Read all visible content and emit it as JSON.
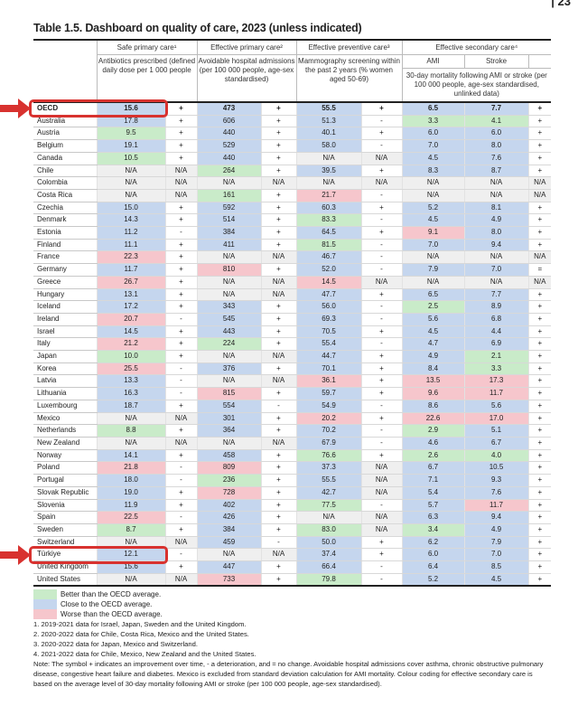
{
  "page_number": "| 23",
  "title": "Table 1.5. Dashboard on quality of care, 2023 (unless indicated)",
  "colors": {
    "b": "#c5d6ee",
    "g": "#c9ebc9",
    "r": "#f6c6cc",
    "n": "#efefef",
    "highlight": "#d8322f"
  },
  "header": {
    "groups": [
      "Safe primary care¹",
      "Effective primary care²",
      "Effective preventive care³",
      "Effective secondary care⁴"
    ],
    "safe_desc": "Antibiotics prescribed (defined daily dose per 1 000 people",
    "eff_desc": "Avoidable hospital admissions (per 100 000 people, age-sex standardised)",
    "prev_desc": "Mammography screening within the past 2 years (% women aged 50-69)",
    "ami": "AMI",
    "stroke": "Stroke",
    "sec_desc": "30-day mortality following AMI or stroke (per 100 000 people, age-sex standardised, unlinked data)"
  },
  "rows": [
    [
      "OECD",
      "15.6",
      "b",
      "+",
      "473",
      "b",
      "+",
      "55.5",
      "b",
      "+",
      "6.5",
      "b",
      "7.7",
      "b",
      "+"
    ],
    [
      "Australia",
      "17.8",
      "b",
      "+",
      "606",
      "b",
      "+",
      "51.3",
      "b",
      "-",
      "3.3",
      "g",
      "4.1",
      "g",
      "+"
    ],
    [
      "Austria",
      "9.5",
      "g",
      "+",
      "440",
      "b",
      "+",
      "40.1",
      "b",
      "+",
      "6.0",
      "b",
      "6.0",
      "b",
      "+"
    ],
    [
      "Belgium",
      "19.1",
      "b",
      "+",
      "529",
      "b",
      "+",
      "58.0",
      "b",
      "-",
      "7.0",
      "b",
      "8.0",
      "b",
      "+"
    ],
    [
      "Canada",
      "10.5",
      "g",
      "+",
      "440",
      "b",
      "+",
      "N/A",
      "n",
      "N/A",
      "4.5",
      "b",
      "7.6",
      "b",
      "+"
    ],
    [
      "Chile",
      "N/A",
      "n",
      "N/A",
      "264",
      "g",
      "+",
      "39.5",
      "b",
      "+",
      "8.3",
      "b",
      "8.7",
      "b",
      "+"
    ],
    [
      "Colombia",
      "N/A",
      "n",
      "N/A",
      "N/A",
      "n",
      "N/A",
      "N/A",
      "n",
      "N/A",
      "N/A",
      "n",
      "N/A",
      "n",
      "N/A"
    ],
    [
      "Costa Rica",
      "N/A",
      "n",
      "N/A",
      "161",
      "g",
      "+",
      "21.7",
      "r",
      "-",
      "N/A",
      "n",
      "N/A",
      "n",
      "N/A"
    ],
    [
      "Czechia",
      "15.0",
      "b",
      "+",
      "592",
      "b",
      "+",
      "60.3",
      "b",
      "+",
      "5.2",
      "b",
      "8.1",
      "b",
      "+"
    ],
    [
      "Denmark",
      "14.3",
      "b",
      "+",
      "514",
      "b",
      "+",
      "83.3",
      "g",
      "-",
      "4.5",
      "b",
      "4.9",
      "b",
      "+"
    ],
    [
      "Estonia",
      "11.2",
      "b",
      "-",
      "384",
      "b",
      "+",
      "64.5",
      "b",
      "+",
      "9.1",
      "r",
      "8.0",
      "b",
      "+"
    ],
    [
      "Finland",
      "11.1",
      "b",
      "+",
      "411",
      "b",
      "+",
      "81.5",
      "g",
      "-",
      "7.0",
      "b",
      "9.4",
      "b",
      "+"
    ],
    [
      "France",
      "22.3",
      "r",
      "+",
      "N/A",
      "n",
      "N/A",
      "46.7",
      "b",
      "-",
      "N/A",
      "n",
      "N/A",
      "n",
      "N/A"
    ],
    [
      "Germany",
      "11.7",
      "b",
      "+",
      "810",
      "r",
      "+",
      "52.0",
      "b",
      "-",
      "7.9",
      "b",
      "7.0",
      "b",
      "="
    ],
    [
      "Greece",
      "26.7",
      "r",
      "+",
      "N/A",
      "n",
      "N/A",
      "14.5",
      "r",
      "N/A",
      "N/A",
      "n",
      "N/A",
      "n",
      "N/A"
    ],
    [
      "Hungary",
      "13.1",
      "b",
      "+",
      "N/A",
      "n",
      "N/A",
      "47.7",
      "b",
      "+",
      "6.5",
      "b",
      "7.7",
      "b",
      "+"
    ],
    [
      "Iceland",
      "17.2",
      "b",
      "+",
      "343",
      "b",
      "+",
      "56.0",
      "b",
      "-",
      "2.5",
      "g",
      "8.9",
      "b",
      "+"
    ],
    [
      "Ireland",
      "20.7",
      "r",
      "-",
      "545",
      "b",
      "+",
      "69.3",
      "b",
      "-",
      "5.6",
      "b",
      "6.8",
      "b",
      "+"
    ],
    [
      "Israel",
      "14.5",
      "b",
      "+",
      "443",
      "b",
      "+",
      "70.5",
      "b",
      "+",
      "4.5",
      "b",
      "4.4",
      "b",
      "+"
    ],
    [
      "Italy",
      "21.2",
      "r",
      "+",
      "224",
      "g",
      "+",
      "55.4",
      "b",
      "-",
      "4.7",
      "b",
      "6.9",
      "b",
      "+"
    ],
    [
      "Japan",
      "10.0",
      "g",
      "+",
      "N/A",
      "n",
      "N/A",
      "44.7",
      "b",
      "+",
      "4.9",
      "b",
      "2.1",
      "g",
      "+"
    ],
    [
      "Korea",
      "25.5",
      "r",
      "-",
      "376",
      "b",
      "+",
      "70.1",
      "b",
      "+",
      "8.4",
      "b",
      "3.3",
      "g",
      "+"
    ],
    [
      "Latvia",
      "13.3",
      "b",
      "-",
      "N/A",
      "n",
      "N/A",
      "36.1",
      "r",
      "+",
      "13.5",
      "r",
      "17.3",
      "r",
      "+"
    ],
    [
      "Lithuania",
      "16.3",
      "b",
      "-",
      "815",
      "r",
      "+",
      "59.7",
      "b",
      "+",
      "9.6",
      "r",
      "11.7",
      "r",
      "+"
    ],
    [
      "Luxembourg",
      "18.7",
      "b",
      "+",
      "554",
      "b",
      "-",
      "54.9",
      "b",
      "-",
      "8.6",
      "b",
      "5.6",
      "b",
      "+"
    ],
    [
      "Mexico",
      "N/A",
      "n",
      "N/A",
      "301",
      "b",
      "+",
      "20.2",
      "r",
      "+",
      "22.6",
      "r",
      "17.0",
      "r",
      "+"
    ],
    [
      "Netherlands",
      "8.8",
      "g",
      "+",
      "364",
      "b",
      "+",
      "70.2",
      "b",
      "-",
      "2.9",
      "g",
      "5.1",
      "b",
      "+"
    ],
    [
      "New Zealand",
      "N/A",
      "n",
      "N/A",
      "N/A",
      "n",
      "N/A",
      "67.9",
      "b",
      "-",
      "4.6",
      "b",
      "6.7",
      "b",
      "+"
    ],
    [
      "Norway",
      "14.1",
      "b",
      "+",
      "458",
      "b",
      "+",
      "76.6",
      "g",
      "+",
      "2.6",
      "g",
      "4.0",
      "g",
      "+"
    ],
    [
      "Poland",
      "21.8",
      "r",
      "-",
      "809",
      "r",
      "+",
      "37.3",
      "b",
      "N/A",
      "6.7",
      "b",
      "10.5",
      "b",
      "+"
    ],
    [
      "Portugal",
      "18.0",
      "b",
      "-",
      "236",
      "g",
      "+",
      "55.5",
      "b",
      "N/A",
      "7.1",
      "b",
      "9.3",
      "b",
      "+"
    ],
    [
      "Slovak Republic",
      "19.0",
      "b",
      "+",
      "728",
      "r",
      "+",
      "42.7",
      "b",
      "N/A",
      "5.4",
      "b",
      "7.6",
      "b",
      "+"
    ],
    [
      "Slovenia",
      "11.9",
      "b",
      "+",
      "402",
      "b",
      "+",
      "77.5",
      "g",
      "-",
      "5.7",
      "b",
      "11.7",
      "r",
      "+"
    ],
    [
      "Spain",
      "22.5",
      "r",
      "-",
      "426",
      "b",
      "+",
      "N/A",
      "n",
      "N/A",
      "6.3",
      "b",
      "9.4",
      "b",
      "+"
    ],
    [
      "Sweden",
      "8.7",
      "g",
      "+",
      "384",
      "b",
      "+",
      "83.0",
      "g",
      "N/A",
      "3.4",
      "g",
      "4.9",
      "b",
      "+"
    ],
    [
      "Switzerland",
      "N/A",
      "n",
      "N/A",
      "459",
      "b",
      "-",
      "50.0",
      "b",
      "+",
      "6.2",
      "b",
      "7.9",
      "b",
      "+"
    ],
    [
      "Türkiye",
      "12.1",
      "b",
      "-",
      "N/A",
      "n",
      "N/A",
      "37.4",
      "b",
      "+",
      "6.0",
      "b",
      "7.0",
      "b",
      "+"
    ],
    [
      "United Kingdom",
      "15.6",
      "b",
      "+",
      "447",
      "b",
      "+",
      "66.4",
      "b",
      "-",
      "6.4",
      "b",
      "8.5",
      "b",
      "+"
    ],
    [
      "United States",
      "N/A",
      "n",
      "N/A",
      "733",
      "r",
      "+",
      "79.8",
      "g",
      "-",
      "5.2",
      "b",
      "4.5",
      "b",
      "+"
    ]
  ],
  "legend": [
    {
      "color": "g",
      "label": "Better than the OECD average."
    },
    {
      "color": "b",
      "label": "Close to the OECD average."
    },
    {
      "color": "r",
      "label": "Worse than the OECD average."
    }
  ],
  "notes": [
    "1. 2019-2021 data for Israel, Japan, Sweden and the United Kingdom.",
    "2. 2020-2022 data for Chile, Costa Rica, Mexico and the United States.",
    "3. 2020-2022 data for Japan, Mexico and Switzerland.",
    "4. 2021-2022 data for Chile, Mexico, New Zealand and the United States.",
    "Note: The symbol + indicates an improvement over time, - a deterioration, and = no change. Avoidable hospital admissions cover asthma, chronic obstructive pulmonary disease, congestive heart failure and diabetes. Mexico is excluded from standard deviation calculation for AMI mortality. Colour coding for effective secondary care is based on the average level of 30-day mortality following AMI or stroke (per 100 000 people, age-sex standardised)."
  ]
}
